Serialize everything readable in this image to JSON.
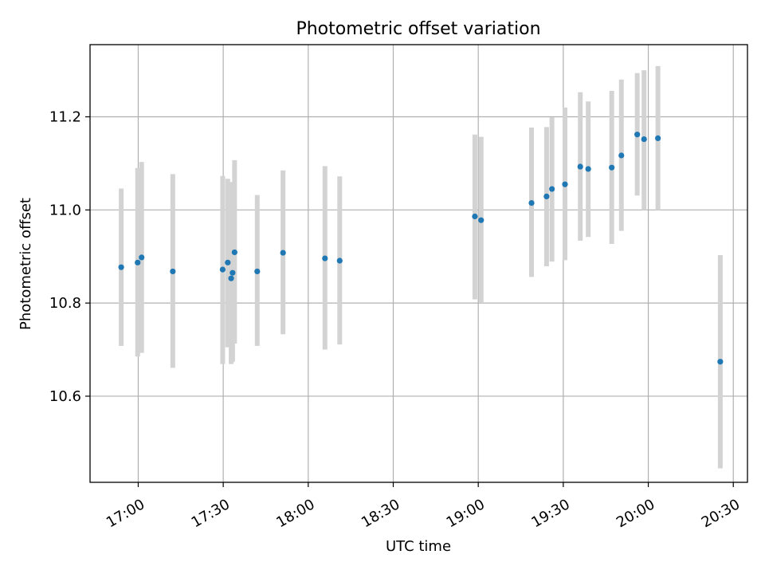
{
  "chart_data": {
    "type": "scatter",
    "title": "Photometric offset variation",
    "xlabel": "UTC time",
    "ylabel": "Photometric offset",
    "grid": true,
    "colors": {
      "point": "#1f77b4",
      "errorbar": "#d3d3d3"
    },
    "xlim_minutes": [
      1003,
      1235
    ],
    "ylim": [
      10.415,
      11.355
    ],
    "xticks": [
      {
        "minutes": 1020,
        "label": "17:00"
      },
      {
        "minutes": 1050,
        "label": "17:30"
      },
      {
        "minutes": 1080,
        "label": "18:00"
      },
      {
        "minutes": 1110,
        "label": "18:30"
      },
      {
        "minutes": 1140,
        "label": "19:00"
      },
      {
        "minutes": 1170,
        "label": "19:30"
      },
      {
        "minutes": 1200,
        "label": "20:00"
      },
      {
        "minutes": 1230,
        "label": "20:30"
      }
    ],
    "yticks": [
      {
        "value": 10.6,
        "label": "10.6"
      },
      {
        "value": 10.8,
        "label": "10.8"
      },
      {
        "value": 11.0,
        "label": "11.0"
      },
      {
        "value": 11.2,
        "label": "11.2"
      }
    ],
    "series": [
      {
        "name": "offset",
        "points": [
          {
            "t": 1014.0,
            "y": 10.877,
            "lo": 10.708,
            "hi": 11.046
          },
          {
            "t": 1019.8,
            "y": 10.887,
            "lo": 10.685,
            "hi": 11.09
          },
          {
            "t": 1021.2,
            "y": 10.898,
            "lo": 10.693,
            "hi": 11.103
          },
          {
            "t": 1032.2,
            "y": 10.868,
            "lo": 10.661,
            "hi": 11.077
          },
          {
            "t": 1049.8,
            "y": 10.872,
            "lo": 10.669,
            "hi": 11.073
          },
          {
            "t": 1051.6,
            "y": 10.887,
            "lo": 10.705,
            "hi": 11.067
          },
          {
            "t": 1052.8,
            "y": 10.853,
            "lo": 10.669,
            "hi": 11.06
          },
          {
            "t": 1053.3,
            "y": 10.865,
            "lo": 10.674,
            "hi": 11.058
          },
          {
            "t": 1054.0,
            "y": 10.909,
            "lo": 10.713,
            "hi": 11.107
          },
          {
            "t": 1062.0,
            "y": 10.868,
            "lo": 10.708,
            "hi": 11.032
          },
          {
            "t": 1071.1,
            "y": 10.908,
            "lo": 10.733,
            "hi": 11.085
          },
          {
            "t": 1085.9,
            "y": 10.896,
            "lo": 10.7,
            "hi": 11.094
          },
          {
            "t": 1091.1,
            "y": 10.891,
            "lo": 10.711,
            "hi": 11.072
          },
          {
            "t": 1138.8,
            "y": 10.986,
            "lo": 10.808,
            "hi": 11.162
          },
          {
            "t": 1141.0,
            "y": 10.978,
            "lo": 10.8,
            "hi": 11.157
          },
          {
            "t": 1158.8,
            "y": 11.015,
            "lo": 10.856,
            "hi": 11.177
          },
          {
            "t": 1164.1,
            "y": 11.029,
            "lo": 10.879,
            "hi": 11.178
          },
          {
            "t": 1166.0,
            "y": 11.045,
            "lo": 10.889,
            "hi": 11.199
          },
          {
            "t": 1170.6,
            "y": 11.055,
            "lo": 10.892,
            "hi": 11.22
          },
          {
            "t": 1176.0,
            "y": 11.093,
            "lo": 10.934,
            "hi": 11.253
          },
          {
            "t": 1178.8,
            "y": 11.088,
            "lo": 10.942,
            "hi": 11.233
          },
          {
            "t": 1187.1,
            "y": 11.091,
            "lo": 10.927,
            "hi": 11.256
          },
          {
            "t": 1190.5,
            "y": 11.117,
            "lo": 10.955,
            "hi": 11.28
          },
          {
            "t": 1196.1,
            "y": 11.162,
            "lo": 11.031,
            "hi": 11.294
          },
          {
            "t": 1198.5,
            "y": 11.152,
            "lo": 11.0,
            "hi": 11.3
          },
          {
            "t": 1203.4,
            "y": 11.154,
            "lo": 11.0,
            "hi": 11.309
          },
          {
            "t": 1225.4,
            "y": 10.674,
            "lo": 10.445,
            "hi": 10.903
          }
        ]
      }
    ]
  }
}
